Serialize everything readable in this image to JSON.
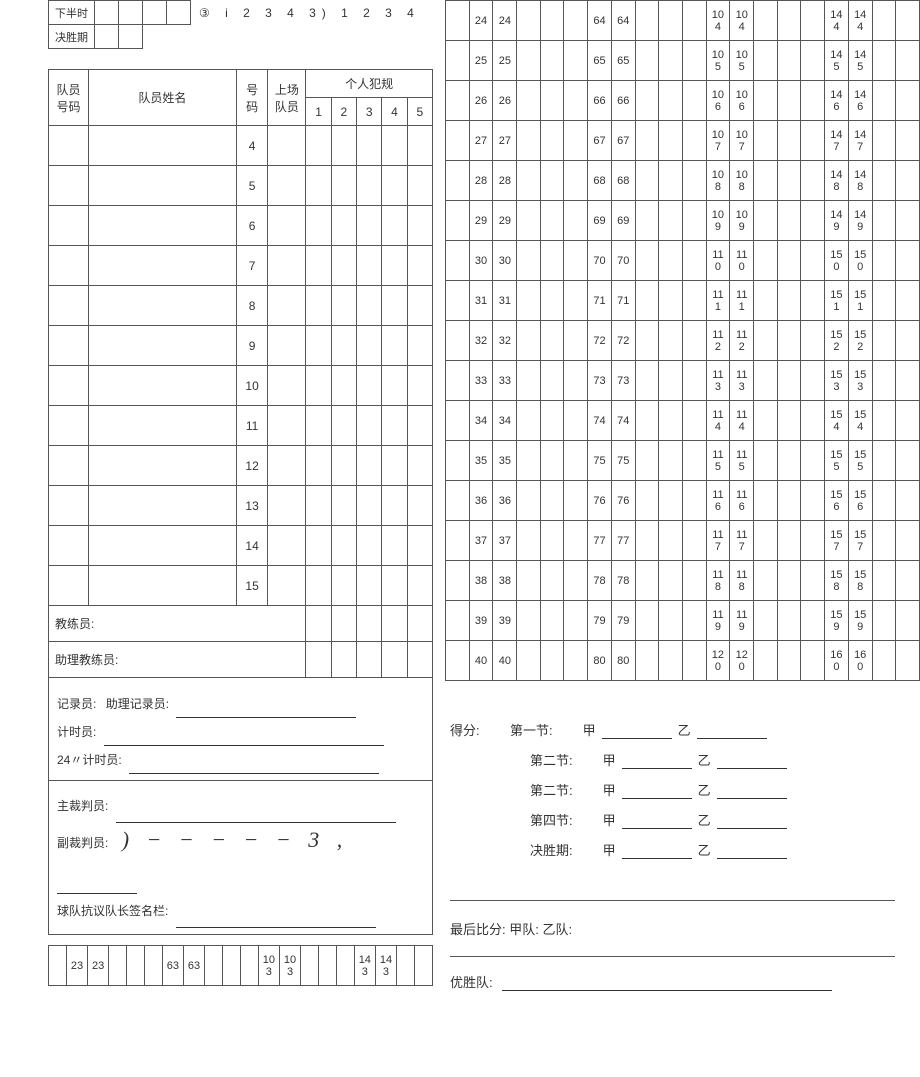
{
  "colors": {
    "text": "#333333",
    "border": "#555555",
    "background": "#ffffff"
  },
  "leftTop": {
    "rows": [
      {
        "label": "下半时",
        "cells": [
          "",
          "",
          "",
          ""
        ],
        "extra": "③  i   2   3   4   3)   1   2   3   4"
      },
      {
        "label": "决胜期",
        "cells": [
          "",
          ""
        ],
        "extra": ""
      }
    ]
  },
  "roster": {
    "headers": {
      "teamNo": "队员\n号码",
      "name": "队员姓名",
      "num": "号\n码",
      "onCourt": "上场\n队员",
      "foulsTitle": "个人犯规",
      "foulCols": [
        "1",
        "2",
        "3",
        "4",
        "5"
      ]
    },
    "numbers": [
      "4",
      "5",
      "6",
      "7",
      "8",
      "9",
      "10",
      "11",
      "12",
      "13",
      "14",
      "15"
    ],
    "coach": "教练员:",
    "asstCoach": "助理教练员:"
  },
  "officials": {
    "scorer": "记录员:",
    "asstScorer": "助理记录员:",
    "timer": "计时员:",
    "shot24": "24〃计时员:",
    "headRef": "主裁判员:",
    "asstRef": "副裁判员:",
    "asstRefScribble": ")   − − − − − 3 ,",
    "protest": "球队抗议队长签名栏:"
  },
  "scoreCols": {
    "rightStart": 24,
    "rightRows": 17,
    "bottomStripStart": 23
  },
  "scoreSummary": {
    "title": "得分:",
    "lines": [
      {
        "period": "第一节:",
        "a": "甲",
        "b": "乙"
      },
      {
        "period": "第二节:",
        "a": "甲",
        "b": "乙"
      },
      {
        "period": "第二节:",
        "a": "甲",
        "b": "乙"
      },
      {
        "period": "第四节:",
        "a": "甲",
        "b": "乙"
      },
      {
        "period": "决胜期:",
        "a": "甲",
        "b": "乙"
      }
    ],
    "final": "最后比分:   甲队:   乙队:",
    "winner": "优胜队:"
  }
}
